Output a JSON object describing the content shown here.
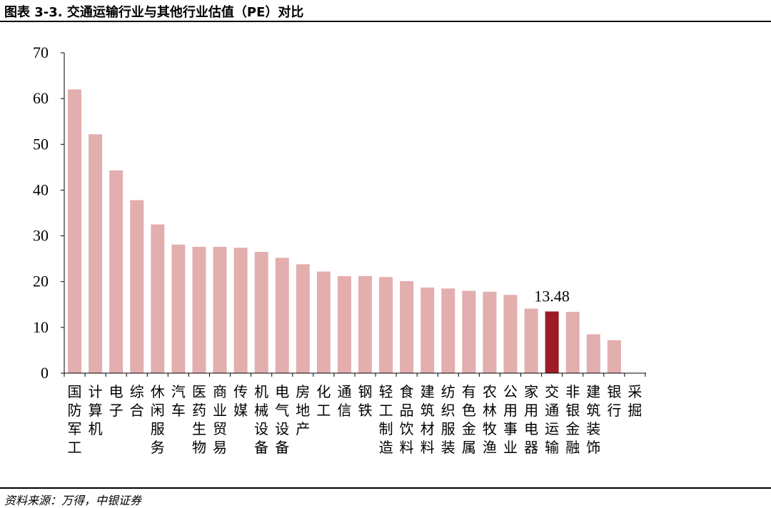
{
  "header": {
    "title": "图表 3-3. 交通运输行业与其他行业估值（PE）对比"
  },
  "footer": {
    "source": "资料来源：万得，中银证券"
  },
  "colors": {
    "bar": "#e3aeae",
    "highlight": "#9b1c24",
    "axis": "#000000"
  },
  "chart_data": {
    "type": "bar",
    "title": "",
    "xlabel": "",
    "ylabel": "",
    "ylim": [
      0,
      70
    ],
    "yticks": [
      0,
      10,
      20,
      30,
      40,
      50,
      60,
      70
    ],
    "grid": false,
    "categories": [
      "国防军工",
      "计算机",
      "电子",
      "综合",
      "休闲服务",
      "汽车",
      "医药生物",
      "商业贸易",
      "传媒",
      "机械设备",
      "电气设备",
      "房地产",
      "化工",
      "通信",
      "钢铁",
      "轻工制造",
      "食品饮料",
      "建筑材料",
      "纺织服装",
      "有色金属",
      "农林牧渔",
      "公用事业",
      "家用电器",
      "交通运输",
      "非银金融",
      "建筑装饰",
      "银行",
      "采掘"
    ],
    "values": [
      62.0,
      52.2,
      44.3,
      37.8,
      32.5,
      28.1,
      27.6,
      27.6,
      27.4,
      26.5,
      25.2,
      23.8,
      22.2,
      21.2,
      21.2,
      21.0,
      20.1,
      18.7,
      18.5,
      18.0,
      17.8,
      17.1,
      14.1,
      13.48,
      13.4,
      8.5,
      7.2,
      0
    ],
    "highlight_category": "交通运输",
    "data_labels": [
      {
        "category": "交通运输",
        "text": "13.48"
      }
    ]
  }
}
